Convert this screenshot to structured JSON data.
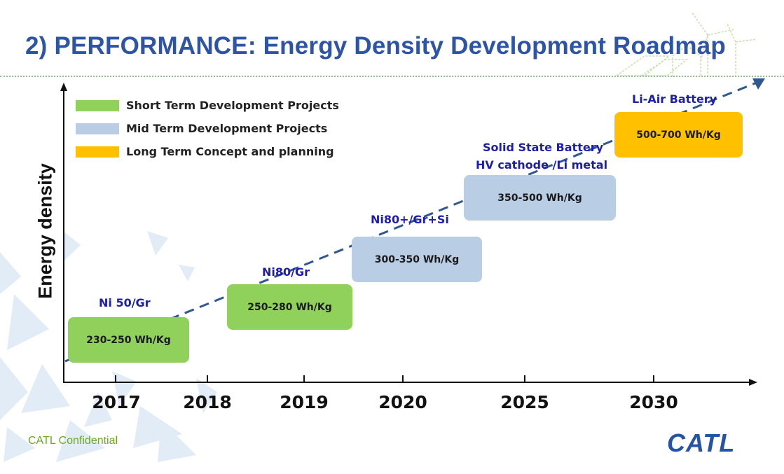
{
  "title": "2) PERFORMANCE: Energy Density Development Roadmap",
  "axis": {
    "y_label": "Energy density"
  },
  "legend": [
    {
      "label": "Short Term Development Projects",
      "color": "#8fd15a"
    },
    {
      "label": "Mid Term Development Projects",
      "color": "#b9cde4"
    },
    {
      "label": "Long Term Concept and planning",
      "color": "#ffc000"
    }
  ],
  "years": [
    "2017",
    "2018",
    "2019",
    "2020",
    "2025",
    "2030"
  ],
  "milestones": [
    {
      "tech": "Ni 50/Gr",
      "density": "230-250 Wh/Kg",
      "term": "short"
    },
    {
      "tech": "Ni80/Gr",
      "density": "250-280 Wh/Kg",
      "term": "short"
    },
    {
      "tech": "Ni80+/Gr+Si",
      "density": "300-350 Wh/Kg",
      "term": "mid"
    },
    {
      "tech_line1": "Solid State Battery",
      "tech_line2": "HV cathode /Li metal",
      "density": "350-500 Wh/Kg",
      "term": "mid"
    },
    {
      "tech": "Li-Air Battery",
      "density": "500-700 Wh/Kg",
      "term": "long"
    }
  ],
  "footer": "CATL Confidential",
  "logo": "CATL",
  "colors": {
    "title": "#2e54a6",
    "tech_label": "#1d1db0",
    "trend_line": "#2f5790",
    "footer": "#6aaa1e"
  }
}
